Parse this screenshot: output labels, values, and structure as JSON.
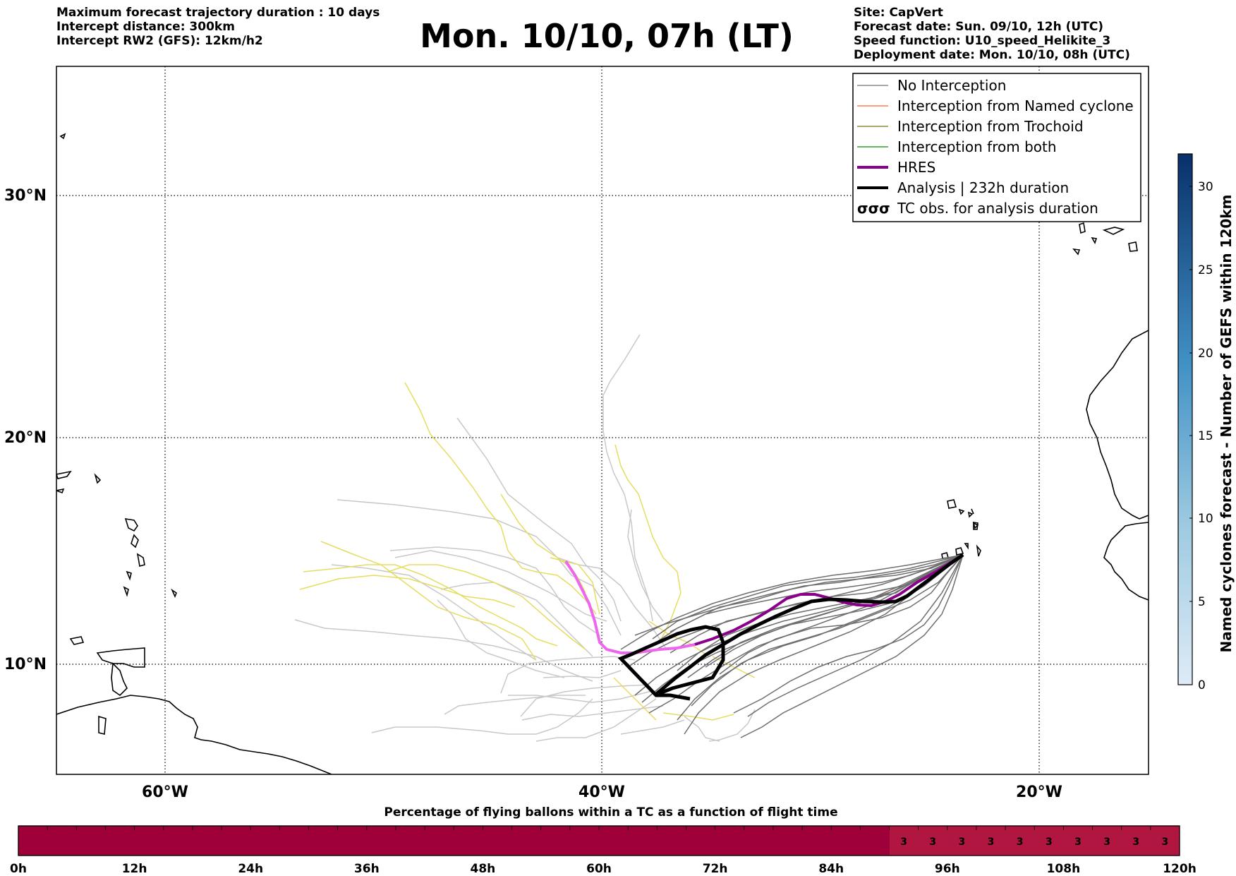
{
  "header": {
    "title": "Mon. 10/10, 07h (LT)",
    "left_lines": [
      "Maximum forecast trajectory duration : 10 days",
      "Intercept distance: 300km",
      "Intercept RW2 (GFS):  12km/h2"
    ],
    "right_lines": [
      "Site: CapVert",
      "Forecast date: Sun. 09/10, 12h (UTC)",
      "Speed function: U10_speed_Helikite_3",
      "Deployment date: Mon. 10/10, 08h (UTC)"
    ]
  },
  "map": {
    "lat_labels": [
      "30°N",
      "20°N",
      "10°N"
    ],
    "lon_labels": [
      "60°W",
      "40°W",
      "20°W"
    ]
  },
  "legend": {
    "items": [
      {
        "label": "No Interception",
        "color": "#888888",
        "style": "thin"
      },
      {
        "label": "Interception from Named cyclone",
        "color": "#ff7f50",
        "style": "thin"
      },
      {
        "label": "Interception from Trochoid",
        "color": "#8b8b3c",
        "style": "thin"
      },
      {
        "label": "Interception from both",
        "color": "#2ca02c",
        "style": "thin"
      },
      {
        "label": "HRES",
        "color": "#8b008b",
        "style": "thick"
      },
      {
        "label": "Analysis | 232h duration",
        "color": "#000000",
        "style": "thick"
      },
      {
        "label": "TC obs. for analysis duration",
        "color": "#000000",
        "style": "symbol",
        "symbol": "σσσ"
      }
    ]
  },
  "colorbar": {
    "label": "Named cyclones forecast - Number of GEFS within 120km",
    "ticks": [
      "0",
      "5",
      "10",
      "15",
      "20",
      "25",
      "30"
    ],
    "color_low": "#d6e4f3",
    "color_high": "#08306b"
  },
  "timeline": {
    "title": "Percentage of flying ballons within a TC as a function of flight time",
    "tick_labels": [
      "0h",
      "12h",
      "24h",
      "36h",
      "48h",
      "60h",
      "72h",
      "84h",
      "96h",
      "108h",
      "120h"
    ],
    "cell_values": [
      "3",
      "3",
      "3",
      "3",
      "3",
      "3",
      "3",
      "3",
      "3",
      "3"
    ],
    "color_main": "#a0003a",
    "color_cells": "#b0163f"
  }
}
